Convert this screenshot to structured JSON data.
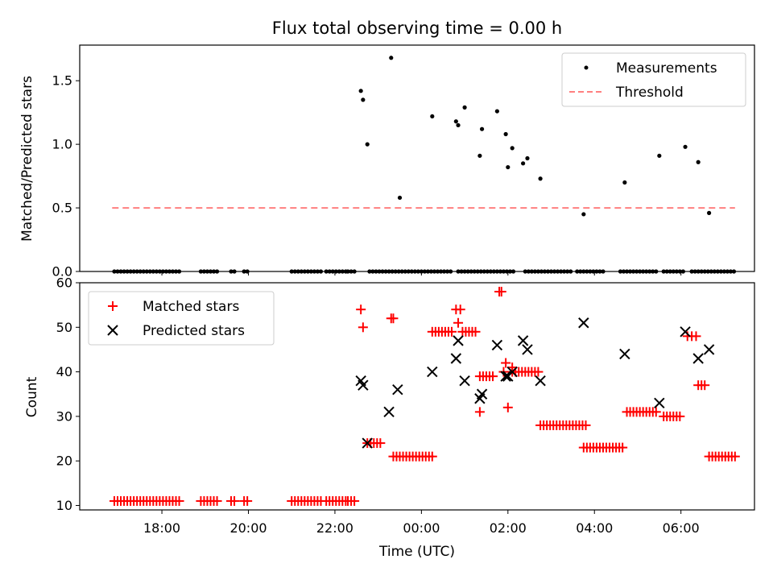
{
  "chart_data": {
    "type": "scatter",
    "title": "Flux total observing time = 0.00 h",
    "x_axis": {
      "label": "Time (UTC)",
      "tick_labels": [
        "18:00",
        "20:00",
        "22:00",
        "00:00",
        "02:00",
        "04:00",
        "06:00"
      ],
      "tick_hours": [
        18,
        20,
        22,
        24,
        26,
        28,
        30
      ],
      "range_hours": [
        16.1,
        31.7
      ]
    },
    "colors": {
      "measurements": "#000000",
      "threshold": "#ff7f7f",
      "matched": "#ff0000",
      "predicted": "#000000"
    },
    "panels": [
      {
        "ylabel": "Matched/Predicted stars",
        "ylim": [
          0,
          1.78
        ],
        "yticks": [
          0.0,
          0.5,
          1.0,
          1.5
        ],
        "ytick_labels": [
          "0.0",
          "0.5",
          "1.0",
          "1.5"
        ],
        "legend": {
          "position": "upper right",
          "entries": [
            "Measurements",
            "Threshold"
          ]
        },
        "series": [
          {
            "name": "Measurements",
            "marker": "dot",
            "points": [
              [
                22.6,
                1.42
              ],
              [
                22.65,
                1.35
              ],
              [
                22.75,
                1.0
              ],
              [
                23.3,
                1.68
              ],
              [
                23.5,
                0.58
              ],
              [
                24.25,
                1.22
              ],
              [
                24.8,
                1.18
              ],
              [
                24.85,
                1.15
              ],
              [
                25.0,
                1.29
              ],
              [
                25.35,
                0.91
              ],
              [
                25.4,
                1.12
              ],
              [
                25.75,
                1.26
              ],
              [
                25.95,
                1.08
              ],
              [
                26.0,
                0.82
              ],
              [
                26.1,
                0.97
              ],
              [
                26.35,
                0.85
              ],
              [
                26.45,
                0.89
              ],
              [
                26.75,
                0.73
              ],
              [
                27.75,
                0.45
              ],
              [
                28.7,
                0.7
              ],
              [
                29.5,
                0.91
              ],
              [
                30.1,
                0.98
              ],
              [
                30.4,
                0.86
              ],
              [
                30.65,
                0.46
              ]
            ],
            "zero_run_hours": [
              [
                16.9,
                17.45
              ],
              [
                17.5,
                18.45
              ],
              [
                18.9,
                19.3
              ],
              [
                19.6,
                19.7
              ],
              [
                19.9,
                20.0
              ],
              [
                21.0,
                21.7
              ],
              [
                21.8,
                22.25
              ],
              [
                22.3,
                22.45
              ],
              [
                22.8,
                24.7
              ],
              [
                24.85,
                26.15
              ],
              [
                26.4,
                27.45
              ],
              [
                27.6,
                28.2
              ],
              [
                28.6,
                29.45
              ],
              [
                29.6,
                30.1
              ],
              [
                30.25,
                31.25
              ]
            ]
          },
          {
            "name": "Threshold",
            "style": "dashed",
            "y": 0.5,
            "x_range_hours": [
              16.85,
              31.25
            ]
          }
        ]
      },
      {
        "ylabel": "Count",
        "ylim": [
          9,
          60
        ],
        "yticks": [
          10,
          20,
          30,
          40,
          50,
          60
        ],
        "ytick_labels": [
          "10",
          "20",
          "30",
          "40",
          "50",
          "60"
        ],
        "legend": {
          "position": "upper left",
          "entries": [
            "Matched stars",
            "Predicted stars"
          ]
        },
        "series": [
          {
            "name": "Matched stars",
            "marker": "plus",
            "points": [
              [
                22.6,
                54
              ],
              [
                22.65,
                50
              ],
              [
                23.3,
                52
              ],
              [
                23.35,
                52
              ],
              [
                24.85,
                51
              ],
              [
                24.8,
                54
              ],
              [
                24.9,
                54
              ],
              [
                25.8,
                58
              ],
              [
                25.85,
                58
              ],
              [
                25.35,
                31
              ],
              [
                26.0,
                32
              ],
              [
                25.95,
                42
              ],
              [
                25.9,
                40
              ],
              [
                26.1,
                41
              ],
              [
                30.15,
                48
              ],
              [
                30.25,
                48
              ],
              [
                30.35,
                48
              ]
            ],
            "runs": [
              [
                11,
                [
                  [
                    16.9,
                    17.45
                  ],
                  [
                    17.5,
                    18.45
                  ],
                  [
                    18.9,
                    19.3
                  ],
                  [
                    19.6,
                    19.7
                  ],
                  [
                    19.9,
                    20.0
                  ],
                  [
                    21.0,
                    21.7
                  ],
                  [
                    21.8,
                    22.25
                  ],
                  [
                    22.3,
                    22.45
                  ]
                ]
              ],
              [
                24,
                [
                  [
                    22.75,
                    23.1
                  ]
                ]
              ],
              [
                21,
                [
                  [
                    23.35,
                    24.25
                  ]
                ]
              ],
              [
                49,
                [
                  [
                    24.25,
                    24.7
                  ]
                ]
              ],
              [
                49,
                [
                  [
                    24.95,
                    25.3
                  ]
                ]
              ],
              [
                39,
                [
                  [
                    25.35,
                    25.7
                  ]
                ]
              ],
              [
                40,
                [
                  [
                    26.1,
                    26.7
                  ]
                ]
              ],
              [
                28,
                [
                  [
                    26.75,
                    27.8
                  ]
                ]
              ],
              [
                23,
                [
                  [
                    27.75,
                    28.7
                  ]
                ]
              ],
              [
                31,
                [
                  [
                    28.75,
                    29.45
                  ]
                ]
              ],
              [
                30,
                [
                  [
                    29.6,
                    30.0
                  ]
                ]
              ],
              [
                37,
                [
                  [
                    30.4,
                    30.6
                  ]
                ]
              ],
              [
                21,
                [
                  [
                    30.65,
                    31.3
                  ]
                ]
              ]
            ]
          },
          {
            "name": "Predicted stars",
            "marker": "x",
            "points": [
              [
                22.6,
                38
              ],
              [
                22.65,
                37
              ],
              [
                22.75,
                24
              ],
              [
                23.25,
                31
              ],
              [
                23.45,
                36
              ],
              [
                24.25,
                40
              ],
              [
                24.8,
                43
              ],
              [
                24.85,
                47
              ],
              [
                25.0,
                38
              ],
              [
                25.35,
                34
              ],
              [
                25.4,
                35
              ],
              [
                25.75,
                46
              ],
              [
                25.95,
                39
              ],
              [
                26.0,
                39
              ],
              [
                26.1,
                40
              ],
              [
                26.35,
                47
              ],
              [
                26.45,
                45
              ],
              [
                26.75,
                38
              ],
              [
                27.75,
                51
              ],
              [
                28.7,
                44
              ],
              [
                29.5,
                33
              ],
              [
                30.1,
                49
              ],
              [
                30.4,
                43
              ],
              [
                30.65,
                45
              ]
            ]
          }
        ]
      }
    ]
  }
}
